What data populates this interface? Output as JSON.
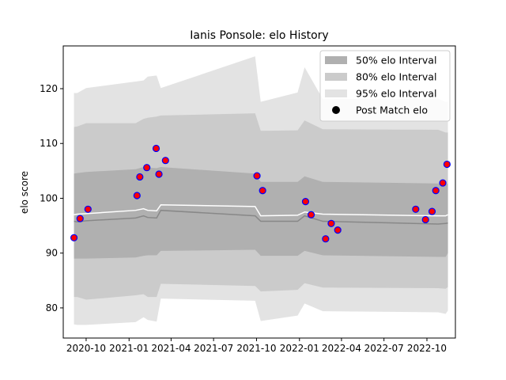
{
  "chart_data": {
    "type": "line",
    "title": "Ianis Ponsole: elo History",
    "xlabel": "",
    "ylabel": "elo score",
    "xlim": [
      "2020-08-13",
      "2022-12-01"
    ],
    "ylim": [
      74.5,
      127.8
    ],
    "x_ticks": [
      "2020-10",
      "2021-01",
      "2021-04",
      "2021-07",
      "2021-10",
      "2022-01",
      "2022-04",
      "2022-07",
      "2022-10"
    ],
    "y_ticks": [
      80,
      90,
      100,
      110,
      120
    ],
    "grid": false,
    "legend_position": "top-right",
    "legend": [
      {
        "label": "50% elo Interval",
        "kind": "band",
        "color": "#b0b0b0"
      },
      {
        "label": "80% elo Interval",
        "kind": "band",
        "color": "#cbcbcb"
      },
      {
        "label": "95% elo Interval",
        "kind": "band",
        "color": "#e3e3e3"
      },
      {
        "label": "Post Match elo",
        "kind": "marker",
        "color": "#000000"
      }
    ],
    "colors": {
      "band95": "#e3e3e3",
      "band80": "#cbcbcb",
      "band50": "#b0b0b0",
      "mean_line": "#888888",
      "median_line": "#ffffff",
      "marker_face": "#ff0000",
      "marker_edge": "#0000ff"
    },
    "bands": {
      "x": [
        "2020-09-05",
        "2020-09-12",
        "2020-10-01",
        "2021-01-15",
        "2021-02-01",
        "2021-02-10",
        "2021-03-01",
        "2021-03-10",
        "2021-09-28",
        "2021-10-10",
        "2021-12-28",
        "2022-01-12",
        "2022-02-20",
        "2022-10-25",
        "2022-11-10",
        "2022-11-15"
      ],
      "mean": [
        95.8,
        95.7,
        95.9,
        96.4,
        96.8,
        96.5,
        96.4,
        97.8,
        96.8,
        95.8,
        95.8,
        96.8,
        95.8,
        95.3,
        95.4,
        95.5
      ],
      "median": [
        97.0,
        97.1,
        97.2,
        97.8,
        98.1,
        97.8,
        97.7,
        98.8,
        98.5,
        96.8,
        96.9,
        97.5,
        97.1,
        96.8,
        96.8,
        97.0
      ],
      "lo50": [
        89.0,
        89.0,
        89.0,
        89.2,
        89.5,
        89.6,
        89.6,
        90.4,
        90.6,
        89.5,
        89.5,
        90.4,
        89.6,
        89.3,
        89.3,
        90.0
      ],
      "hi50": [
        104.5,
        104.6,
        104.8,
        105.3,
        105.7,
        105.6,
        105.5,
        105.7,
        104.5,
        103.0,
        103.0,
        104.0,
        103.0,
        102.7,
        102.5,
        102.7
      ],
      "lo80": [
        82.0,
        82.0,
        81.5,
        82.3,
        82.5,
        82.0,
        82.0,
        84.4,
        84.0,
        83.0,
        83.3,
        84.5,
        83.7,
        83.6,
        83.5,
        83.8
      ],
      "hi80": [
        113.0,
        113.1,
        113.7,
        113.7,
        114.5,
        114.7,
        114.9,
        115.1,
        115.5,
        112.3,
        112.4,
        114.2,
        112.6,
        112.5,
        112.0,
        112.0
      ],
      "lo95": [
        77.0,
        76.9,
        76.9,
        77.4,
        78.3,
        77.8,
        77.5,
        81.7,
        81.3,
        77.6,
        78.6,
        80.8,
        79.4,
        79.2,
        78.9,
        79.5
      ],
      "hi95": [
        119.2,
        119.2,
        120.1,
        121.3,
        121.5,
        122.2,
        122.4,
        120.1,
        125.9,
        117.6,
        119.3,
        123.9,
        118.1,
        118.2,
        117.6,
        117.6
      ]
    },
    "points": [
      {
        "x": "2020-09-05",
        "y": 92.8
      },
      {
        "x": "2020-09-18",
        "y": 96.3
      },
      {
        "x": "2020-10-05",
        "y": 98.0
      },
      {
        "x": "2021-01-18",
        "y": 100.5
      },
      {
        "x": "2021-01-24",
        "y": 103.9
      },
      {
        "x": "2021-02-08",
        "y": 105.6
      },
      {
        "x": "2021-02-28",
        "y": 109.1
      },
      {
        "x": "2021-03-06",
        "y": 104.4
      },
      {
        "x": "2021-03-20",
        "y": 106.9
      },
      {
        "x": "2021-10-02",
        "y": 104.1
      },
      {
        "x": "2021-10-14",
        "y": 101.4
      },
      {
        "x": "2022-01-14",
        "y": 99.4
      },
      {
        "x": "2022-01-26",
        "y": 97.0
      },
      {
        "x": "2022-02-26",
        "y": 92.6
      },
      {
        "x": "2022-03-10",
        "y": 95.4
      },
      {
        "x": "2022-03-24",
        "y": 94.2
      },
      {
        "x": "2022-09-07",
        "y": 98.0
      },
      {
        "x": "2022-09-28",
        "y": 96.1
      },
      {
        "x": "2022-10-12",
        "y": 97.6
      },
      {
        "x": "2022-10-20",
        "y": 101.4
      },
      {
        "x": "2022-11-04",
        "y": 102.8
      },
      {
        "x": "2022-11-13",
        "y": 106.2
      }
    ]
  }
}
